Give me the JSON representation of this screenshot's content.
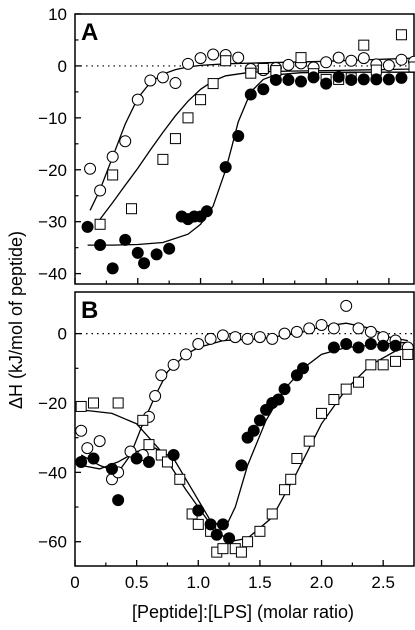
{
  "chart_data": [
    {
      "type": "scatter",
      "panel_label": "A",
      "xlim": [
        0,
        2.7
      ],
      "ylim": [
        -42,
        10
      ],
      "yticks": [
        10,
        0,
        -10,
        -20,
        -30,
        -40
      ],
      "zero_line": "dotted",
      "series": [
        {
          "marker": "open-circle",
          "points": [
            [
              0.12,
              -19.8
            ],
            [
              0.2,
              -24
            ],
            [
              0.3,
              -17.5
            ],
            [
              0.4,
              -14.5
            ],
            [
              0.5,
              -6.5
            ],
            [
              0.6,
              -2.8
            ],
            [
              0.7,
              -2.2
            ],
            [
              0.8,
              -3.3
            ],
            [
              0.9,
              0.4
            ],
            [
              1.0,
              1.5
            ],
            [
              1.1,
              2.2
            ],
            [
              1.2,
              2.1
            ],
            [
              1.3,
              1.6
            ],
            [
              1.4,
              -0.6
            ],
            [
              1.5,
              -0.8
            ],
            [
              1.6,
              -0.4
            ],
            [
              1.7,
              0.2
            ],
            [
              1.8,
              0.5
            ],
            [
              1.9,
              -0.3
            ],
            [
              2.0,
              0.7
            ],
            [
              2.1,
              1.6
            ],
            [
              2.2,
              1.0
            ],
            [
              2.3,
              1.5
            ],
            [
              2.4,
              0.3
            ],
            [
              2.5,
              0.1
            ],
            [
              2.6,
              1.2
            ],
            [
              2.7,
              0.8
            ]
          ],
          "fit": [
            [
              0.12,
              -27.8
            ],
            [
              0.2,
              -23.8
            ],
            [
              0.3,
              -17.5
            ],
            [
              0.4,
              -11.2
            ],
            [
              0.5,
              -6.2
            ],
            [
              0.6,
              -3.2
            ],
            [
              0.7,
              -1.6
            ],
            [
              0.8,
              -0.7
            ],
            [
              0.9,
              -0.2
            ],
            [
              1.0,
              0.1
            ],
            [
              1.2,
              0.4
            ],
            [
              1.5,
              0.6
            ],
            [
              2.0,
              0.9
            ],
            [
              2.7,
              1.5
            ]
          ]
        },
        {
          "marker": "open-square",
          "points": [
            [
              0.2,
              -30.5
            ],
            [
              0.3,
              -21
            ],
            [
              0.45,
              -27.5
            ],
            [
              0.7,
              -18
            ],
            [
              0.8,
              -14
            ],
            [
              0.9,
              -10
            ],
            [
              1.0,
              -6.5
            ],
            [
              1.1,
              -3.4
            ],
            [
              1.2,
              1
            ],
            [
              1.4,
              -1.4
            ],
            [
              1.5,
              -0.5
            ],
            [
              1.6,
              -0.9
            ],
            [
              1.8,
              1.6
            ],
            [
              1.9,
              -1.5
            ],
            [
              2.0,
              -2.6
            ],
            [
              2.1,
              -2.6
            ],
            [
              2.2,
              -2.3
            ],
            [
              2.3,
              4
            ],
            [
              2.4,
              -0.8
            ],
            [
              2.6,
              6
            ],
            [
              2.7,
              -0.2
            ]
          ],
          "fit": [
            [
              0.2,
              -29.5
            ],
            [
              0.3,
              -26.3
            ],
            [
              0.4,
              -23
            ],
            [
              0.5,
              -19.7
            ],
            [
              0.6,
              -16.2
            ],
            [
              0.7,
              -12.8
            ],
            [
              0.8,
              -9.6
            ],
            [
              0.9,
              -6.8
            ],
            [
              1.0,
              -4.5
            ],
            [
              1.1,
              -2.9
            ],
            [
              1.2,
              -1.9
            ],
            [
              1.4,
              -1.2
            ],
            [
              1.7,
              -1
            ],
            [
              2.0,
              -0.9
            ],
            [
              2.7,
              -0.6
            ]
          ]
        },
        {
          "marker": "filled-circle",
          "points": [
            [
              0.1,
              -31
            ],
            [
              0.2,
              -34.5
            ],
            [
              0.3,
              -39
            ],
            [
              0.4,
              -33.5
            ],
            [
              0.5,
              -36
            ],
            [
              0.55,
              -38
            ],
            [
              0.65,
              -36.3
            ],
            [
              0.75,
              -35.2
            ],
            [
              0.85,
              -29
            ],
            [
              0.9,
              -29.5
            ],
            [
              0.95,
              -29
            ],
            [
              1.0,
              -29
            ],
            [
              1.05,
              -28
            ],
            [
              1.2,
              -19.5
            ],
            [
              1.3,
              -13.5
            ],
            [
              1.4,
              -5.5
            ],
            [
              1.5,
              -4.5
            ],
            [
              1.6,
              -2.7
            ],
            [
              1.7,
              -2.7
            ],
            [
              1.8,
              -3
            ],
            [
              1.9,
              -2.2
            ],
            [
              2.0,
              -3.4
            ],
            [
              2.1,
              -2.1
            ],
            [
              2.2,
              -2.7
            ],
            [
              2.3,
              -2.6
            ],
            [
              2.4,
              -2.6
            ],
            [
              2.5,
              -2.6
            ],
            [
              2.6,
              -2.3
            ]
          ],
          "fit": [
            [
              0.1,
              -34.5
            ],
            [
              0.3,
              -34.5
            ],
            [
              0.5,
              -34.4
            ],
            [
              0.7,
              -34
            ],
            [
              0.9,
              -32.4
            ],
            [
              1.0,
              -30.5
            ],
            [
              1.1,
              -27
            ],
            [
              1.2,
              -20
            ],
            [
              1.25,
              -15.5
            ],
            [
              1.3,
              -10.8
            ],
            [
              1.4,
              -5
            ],
            [
              1.5,
              -2.6
            ],
            [
              1.6,
              -1.7
            ],
            [
              1.8,
              -1.3
            ],
            [
              2.2,
              -1.2
            ],
            [
              2.7,
              -1.2
            ]
          ]
        }
      ]
    },
    {
      "type": "scatter",
      "panel_label": "B",
      "xlim": [
        0,
        2.75
      ],
      "ylim": [
        -67,
        12
      ],
      "yticks": [
        0,
        -20,
        -40,
        -60
      ],
      "xticks": [
        0,
        0.5,
        1.0,
        1.5,
        2.0,
        2.5
      ],
      "xticklabels": [
        "0",
        "0.5",
        "1.0",
        "1.5",
        "2.0",
        "2.5"
      ],
      "zero_line": "dotted",
      "series": [
        {
          "marker": "open-circle",
          "points": [
            [
              0.05,
              -28
            ],
            [
              0.1,
              -33
            ],
            [
              0.2,
              -31
            ],
            [
              0.3,
              -42
            ],
            [
              0.35,
              -40
            ],
            [
              0.45,
              -34
            ],
            [
              0.55,
              -35
            ],
            [
              0.6,
              -24
            ],
            [
              0.65,
              -18
            ],
            [
              0.7,
              -12
            ],
            [
              0.8,
              -9
            ],
            [
              0.9,
              -6
            ],
            [
              1.0,
              -3
            ],
            [
              1.1,
              -1.5
            ],
            [
              1.2,
              -0.5
            ],
            [
              1.3,
              -1
            ],
            [
              1.4,
              -1.5
            ],
            [
              1.5,
              -1
            ],
            [
              1.6,
              -1.5
            ],
            [
              1.7,
              0
            ],
            [
              1.8,
              0.5
            ],
            [
              1.9,
              1.5
            ],
            [
              2.0,
              2.5
            ],
            [
              2.1,
              1.5
            ],
            [
              2.2,
              8
            ],
            [
              2.3,
              1.5
            ],
            [
              2.4,
              0.5
            ],
            [
              2.5,
              -1
            ],
            [
              2.6,
              -2
            ],
            [
              2.7,
              -4
            ]
          ],
          "fit": [
            [
              0.05,
              -35
            ],
            [
              0.2,
              -38
            ],
            [
              0.35,
              -40
            ],
            [
              0.45,
              -35
            ],
            [
              0.55,
              -26
            ],
            [
              0.65,
              -18
            ],
            [
              0.75,
              -11
            ],
            [
              0.9,
              -6
            ],
            [
              1.0,
              -4
            ],
            [
              1.2,
              -2
            ],
            [
              1.5,
              -1.5
            ],
            [
              1.8,
              0
            ],
            [
              2.0,
              2
            ],
            [
              2.2,
              3
            ],
            [
              2.4,
              1.5
            ],
            [
              2.55,
              -1
            ],
            [
              2.7,
              -2
            ]
          ]
        },
        {
          "marker": "open-square",
          "points": [
            [
              0.05,
              -21
            ],
            [
              0.15,
              -20
            ],
            [
              0.35,
              -20
            ],
            [
              0.55,
              -25
            ],
            [
              0.6,
              -32
            ],
            [
              0.7,
              -35
            ],
            [
              0.75,
              -37
            ],
            [
              0.85,
              -42
            ],
            [
              0.95,
              -52
            ],
            [
              1.0,
              -55
            ],
            [
              1.1,
              -57
            ],
            [
              1.15,
              -63
            ],
            [
              1.2,
              -62
            ],
            [
              1.3,
              -62
            ],
            [
              1.35,
              -63
            ],
            [
              1.4,
              -60
            ],
            [
              1.5,
              -57
            ],
            [
              1.6,
              -52
            ],
            [
              1.7,
              -45
            ],
            [
              1.75,
              -42
            ],
            [
              1.8,
              -36
            ],
            [
              1.9,
              -31
            ],
            [
              2.0,
              -23
            ],
            [
              2.1,
              -19
            ],
            [
              2.2,
              -16
            ],
            [
              2.3,
              -14
            ],
            [
              2.4,
              -9
            ],
            [
              2.5,
              -9
            ],
            [
              2.6,
              -8
            ],
            [
              2.7,
              -6
            ]
          ],
          "fit": [
            [
              0.05,
              -22
            ],
            [
              0.3,
              -23
            ],
            [
              0.5,
              -26
            ],
            [
              0.7,
              -34
            ],
            [
              0.9,
              -45
            ],
            [
              1.1,
              -55
            ],
            [
              1.25,
              -60
            ],
            [
              1.4,
              -59
            ],
            [
              1.6,
              -53
            ],
            [
              1.8,
              -40
            ],
            [
              2.0,
              -26
            ],
            [
              2.2,
              -16
            ],
            [
              2.4,
              -9
            ],
            [
              2.6,
              -5
            ],
            [
              2.7,
              -4
            ]
          ]
        },
        {
          "marker": "filled-circle",
          "points": [
            [
              0.05,
              -37
            ],
            [
              0.15,
              -36
            ],
            [
              0.3,
              -39
            ],
            [
              0.35,
              -48
            ],
            [
              0.5,
              -36
            ],
            [
              0.6,
              -37
            ],
            [
              0.8,
              -35
            ],
            [
              1.0,
              -51
            ],
            [
              1.1,
              -55
            ],
            [
              1.15,
              -58
            ],
            [
              1.2,
              -55
            ],
            [
              1.25,
              -59
            ],
            [
              1.35,
              -38
            ],
            [
              1.4,
              -30
            ],
            [
              1.45,
              -28
            ],
            [
              1.5,
              -25
            ],
            [
              1.55,
              -22
            ],
            [
              1.6,
              -20
            ],
            [
              1.65,
              -19
            ],
            [
              1.7,
              -16
            ],
            [
              1.8,
              -12
            ],
            [
              1.85,
              -10
            ],
            [
              2.1,
              -4
            ],
            [
              2.2,
              -3
            ],
            [
              2.3,
              -4
            ],
            [
              2.4,
              -3
            ],
            [
              2.5,
              -3.5
            ],
            [
              2.6,
              -3.5
            ]
          ],
          "fit": [
            [
              0.05,
              -38
            ],
            [
              0.2,
              -39
            ],
            [
              0.35,
              -37
            ],
            [
              0.5,
              -34
            ],
            [
              0.65,
              -33
            ],
            [
              0.8,
              -36
            ],
            [
              0.95,
              -45
            ],
            [
              1.1,
              -54
            ],
            [
              1.22,
              -56
            ],
            [
              1.3,
              -50
            ],
            [
              1.4,
              -38
            ],
            [
              1.55,
              -25
            ],
            [
              1.7,
              -16
            ],
            [
              1.85,
              -10
            ],
            [
              2.0,
              -6
            ],
            [
              2.2,
              -4
            ],
            [
              2.5,
              -3
            ],
            [
              2.7,
              -2.5
            ]
          ]
        }
      ]
    }
  ],
  "shared": {
    "ylabel": "ΔH (kJ/mol of peptide)",
    "xlabel": "[Peptide]:[LPS] (molar ratio)"
  }
}
